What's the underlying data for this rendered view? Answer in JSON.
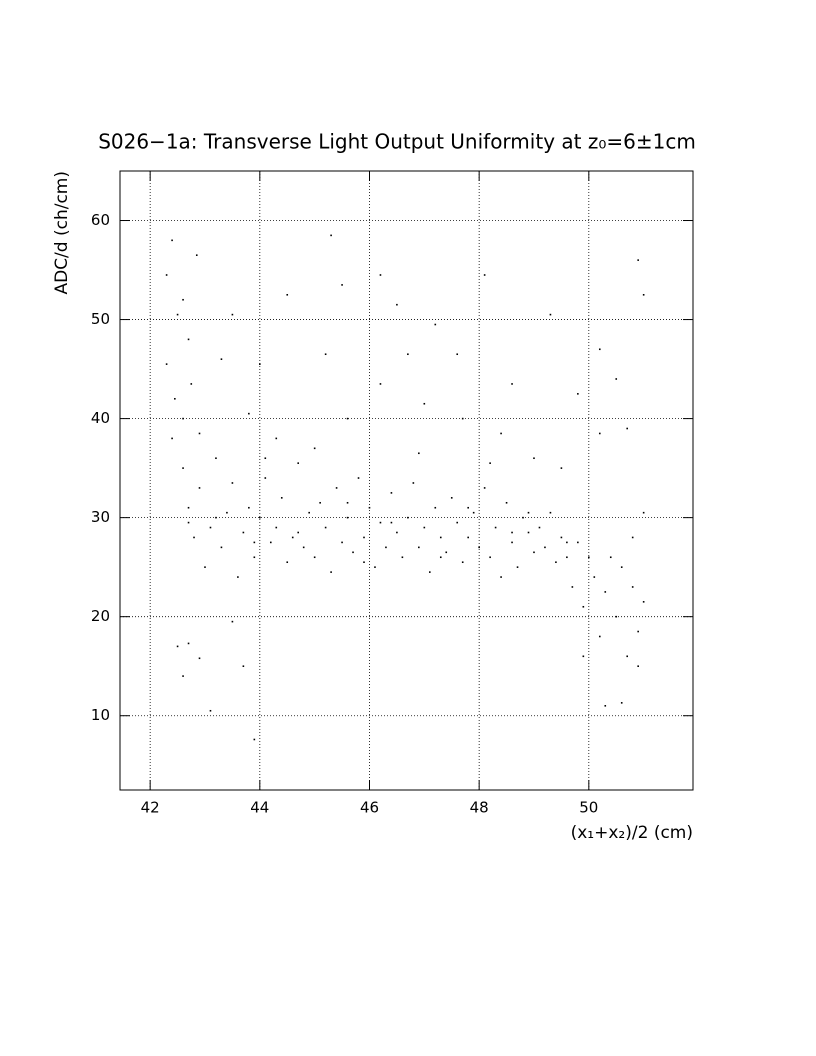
{
  "chart_data": {
    "type": "scatter",
    "title": "S026−1a: Transverse Light Output Uniformity at z₀=6±1cm",
    "x_label": "(x₁+x₂)/2 (cm)",
    "y_label": "ADC/d (ch/cm)",
    "color": "#000000",
    "grid": true,
    "xlim": [
      41.45,
      51.9
    ],
    "ylim": [
      2.5,
      65
    ],
    "xticks": [
      42,
      44,
      46,
      48,
      50
    ],
    "yticks": [
      10,
      20,
      30,
      40,
      50,
      60
    ],
    "x": [
      42.3,
      42.4,
      42.5,
      42.6,
      42.7,
      42.85,
      42.3,
      42.45,
      42.6,
      42.75,
      42.5,
      42.6,
      42.7,
      42.9,
      43.1,
      43.5,
      43.7,
      43.9,
      42.4,
      42.6,
      42.7,
      42.8,
      42.9,
      43.0,
      43.1,
      43.2,
      43.3,
      43.4,
      43.5,
      43.6,
      43.7,
      43.8,
      43.9,
      44.0,
      44.1,
      44.2,
      44.3,
      44.4,
      44.5,
      44.6,
      44.7,
      44.8,
      44.9,
      45.0,
      45.1,
      45.2,
      45.3,
      45.4,
      45.5,
      45.6,
      45.7,
      45.8,
      45.9,
      46.0,
      46.1,
      46.2,
      46.3,
      46.4,
      46.5,
      46.6,
      46.7,
      46.8,
      46.9,
      47.0,
      47.1,
      47.2,
      47.3,
      47.4,
      47.5,
      47.6,
      47.7,
      47.8,
      47.9,
      48.0,
      48.1,
      48.2,
      48.3,
      48.4,
      48.5,
      48.6,
      48.7,
      48.8,
      48.9,
      49.0,
      49.1,
      49.2,
      49.3,
      49.4,
      49.5,
      49.6,
      49.7,
      49.8,
      49.9,
      50.0,
      50.1,
      50.2,
      50.3,
      50.4,
      50.5,
      50.6,
      50.7,
      50.8,
      50.9,
      51.0,
      50.3,
      50.6,
      50.9,
      49.9,
      43.3,
      43.5,
      44.0,
      44.5,
      45.2,
      45.3,
      45.5,
      46.2,
      46.5,
      46.7,
      47.2,
      47.6,
      48.1,
      48.6,
      49.3,
      49.8,
      50.2,
      50.5,
      50.9,
      51.0,
      50.7,
      50.2,
      44.3,
      45.6,
      46.2,
      47.0,
      47.7,
      48.4,
      49.0,
      43.8,
      42.9,
      51.0,
      50.8,
      49.5,
      45.0,
      46.9,
      48.2,
      44.1,
      43.2,
      45.6,
      46.4,
      47.8,
      48.9,
      44.7,
      45.9,
      47.3,
      48.6,
      49.6,
      43.9,
      42.7
    ],
    "values": [
      54.5,
      58,
      50.5,
      52,
      48,
      56.5,
      45.5,
      42,
      40,
      43.5,
      17,
      14,
      17.3,
      15.8,
      10.5,
      19.5,
      15,
      7.6,
      38,
      35,
      31,
      28,
      33,
      25,
      29,
      36,
      27,
      30.5,
      33.5,
      24,
      28.5,
      31,
      26,
      30,
      34,
      27.5,
      29,
      32,
      25.5,
      28,
      35.5,
      27,
      30.5,
      26,
      31.5,
      29,
      24.5,
      33,
      27.5,
      30,
      26.5,
      34,
      28,
      31,
      25,
      29.5,
      27,
      32.5,
      28.5,
      26,
      30,
      33.5,
      27,
      29,
      24.5,
      31,
      28,
      26.5,
      32,
      29.5,
      25.5,
      28,
      30.5,
      27,
      33,
      26,
      29,
      24,
      31.5,
      27.5,
      25,
      30,
      28.5,
      26.5,
      29,
      27,
      30.5,
      25.5,
      28,
      26,
      23,
      27.5,
      21,
      26,
      24,
      18,
      22.5,
      26,
      20,
      25,
      16,
      23,
      18.5,
      21.5,
      11,
      11.3,
      15,
      16,
      46,
      50.5,
      45.5,
      52.5,
      46.5,
      58.5,
      53.5,
      54.5,
      51.5,
      46.5,
      49.5,
      46.5,
      54.5,
      43.5,
      50.5,
      42.5,
      47,
      44,
      56,
      52.5,
      39,
      38.5,
      38,
      40,
      43.5,
      41.5,
      40,
      38.5,
      36,
      40.5,
      38.5,
      30.5,
      28,
      35,
      37,
      36.5,
      35.5,
      36,
      30,
      31.5,
      29.5,
      31,
      30.5,
      28.5,
      25.5,
      26,
      28.5,
      27.5,
      27.5,
      29.5
    ]
  }
}
